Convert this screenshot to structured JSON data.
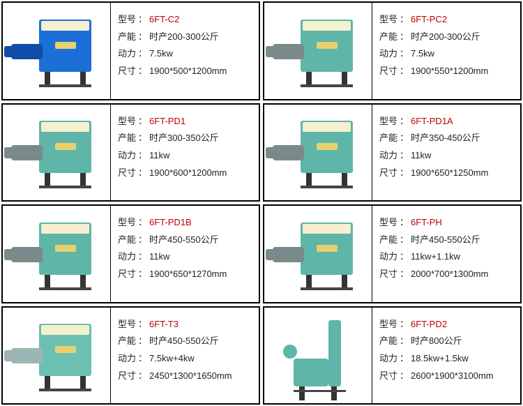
{
  "labels": {
    "model": "型号",
    "capacity": "产能",
    "power": "动力",
    "size": "尺寸"
  },
  "products": [
    {
      "model": "6FT-C2",
      "capacity": "时产200-300公斤",
      "power": "7.5kw",
      "size": "1900*500*1200mm",
      "color_body": "#1b6fd6",
      "color_arm": "#0f4da8",
      "variant": "std"
    },
    {
      "model": "6FT-PC2",
      "capacity": "时产200-300公斤",
      "power": "7.5kw",
      "size": "1900*550*1200mm",
      "color_body": "#5fb5a8",
      "color_arm": "#7a8a8a",
      "variant": "std"
    },
    {
      "model": "6FT-PD1",
      "capacity": "时产300-350公斤",
      "power": "11kw",
      "size": "1900*600*1200mm",
      "color_body": "#5fb5a8",
      "color_arm": "#7a8a8a",
      "variant": "std"
    },
    {
      "model": "6FT-PD1A",
      "capacity": "时产350-450公斤",
      "power": "11kw",
      "size": "1900*650*1250mm",
      "color_body": "#5fb5a8",
      "color_arm": "#7a8a8a",
      "variant": "std"
    },
    {
      "model": "6FT-PD1B",
      "capacity": "时产450-550公斤",
      "power": "11kw",
      "size": "1900*650*1270mm",
      "color_body": "#5fb5a8",
      "color_arm": "#7a8a8a",
      "variant": "std"
    },
    {
      "model": "6FT-PH",
      "capacity": "时产450-550公斤",
      "power": "11kw+1.1kw",
      "size": "2000*700*1300mm",
      "color_body": "#5fb5a8",
      "color_arm": "#7a8a8a",
      "variant": "std"
    },
    {
      "model": "6FT-T3",
      "capacity": "时产450-550公斤",
      "power": "7.5kw+4kw",
      "size": "2450*1300*1650mm",
      "color_body": "#6bc0b1",
      "color_arm": "#9cb5b5",
      "variant": "std"
    },
    {
      "model": "6FT-PD2",
      "capacity": "时产800公斤",
      "power": "18.5kw+1.5kw",
      "size": "2600*1900*3100mm",
      "color_body": "#5fb5a8",
      "color_arm": "#5fb5a8",
      "variant": "tall"
    }
  ]
}
